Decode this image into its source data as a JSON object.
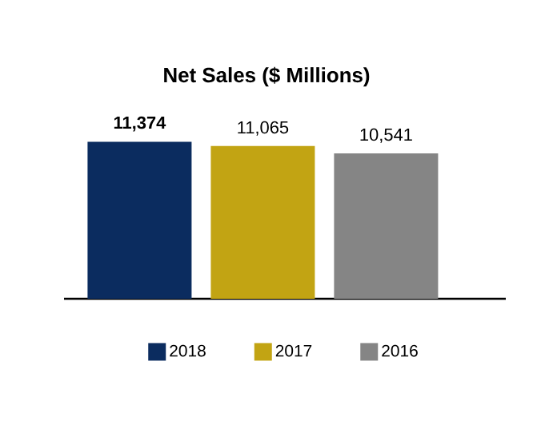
{
  "chart_data": {
    "type": "bar",
    "title": "Net Sales ($ Millions)",
    "categories": [
      null
    ],
    "series": [
      {
        "name": "2018",
        "color": "#0b2c5f",
        "values": [
          11374
        ],
        "value_labels": [
          "**11,374**"
        ]
      },
      {
        "name": "2017",
        "color": "#c2a413",
        "values": [
          11065
        ],
        "value_labels": [
          "11,065"
        ]
      },
      {
        "name": "2016",
        "color": "#858585",
        "values": [
          10541
        ],
        "value_labels": [
          "10,541"
        ]
      }
    ],
    "legend": "bottom"
  }
}
